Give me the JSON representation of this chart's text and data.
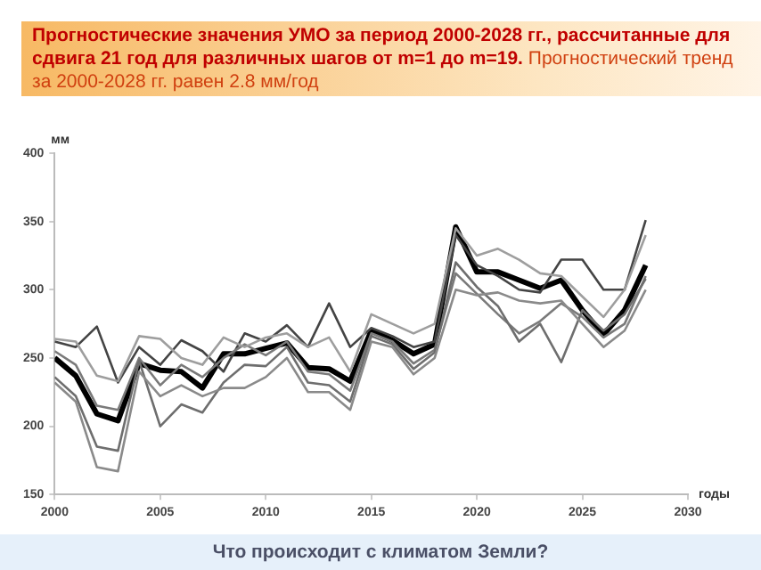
{
  "chart_data": {
    "type": "line",
    "title": "Прогностические значения УМО за период 2000-2028 гг., рассчитанные для сдвига 21 год для различных шагов от m=1 до m=19.",
    "subtitle": "Прогностический тренд за 2000-2028 гг. равен 2.8 мм/год",
    "ylabel": "мм",
    "xlabel": "годы",
    "annotations": [
      "Что происходит с климатом Земли?"
    ],
    "x": [
      2000,
      2001,
      2002,
      2003,
      2004,
      2005,
      2006,
      2007,
      2008,
      2009,
      2010,
      2011,
      2012,
      2013,
      2014,
      2015,
      2016,
      2017,
      2018,
      2019,
      2020,
      2021,
      2022,
      2023,
      2024,
      2025,
      2026,
      2027,
      2028
    ],
    "series": [
      {
        "color": "#9e9e9e",
        "values": [
          264,
          262,
          237,
          233,
          266,
          264,
          250,
          245,
          265,
          258,
          265,
          268,
          258,
          265,
          240,
          282,
          275,
          268,
          275,
          345,
          325,
          330,
          322,
          312,
          310,
          295,
          280,
          300,
          340
        ]
      },
      {
        "color": "#8a8a8a",
        "values": [
          232,
          218,
          170,
          167,
          240,
          222,
          230,
          222,
          228,
          228,
          236,
          250,
          225,
          225,
          212,
          262,
          258,
          238,
          250,
          300,
          296,
          298,
          292,
          290,
          292,
          275,
          258,
          270,
          300
        ]
      },
      {
        "color": "#6e6e6e",
        "values": [
          236,
          222,
          185,
          182,
          248,
          200,
          216,
          210,
          232,
          245,
          244,
          258,
          232,
          230,
          218,
          266,
          260,
          242,
          254,
          320,
          302,
          288,
          262,
          275,
          247,
          285,
          270,
          282,
          308
        ]
      },
      {
        "color": "#7a7a7a",
        "values": [
          255,
          245,
          215,
          212,
          250,
          230,
          245,
          236,
          250,
          260,
          252,
          262,
          240,
          238,
          226,
          268,
          262,
          246,
          256,
          312,
          297,
          282,
          268,
          277,
          290,
          280,
          265,
          275,
          310
        ]
      },
      {
        "color": "#444444",
        "values": [
          262,
          258,
          273,
          232,
          258,
          245,
          263,
          255,
          240,
          268,
          262,
          274,
          258,
          290,
          258,
          272,
          266,
          258,
          262,
          340,
          318,
          310,
          300,
          298,
          322,
          322,
          300,
          300,
          351
        ]
      },
      {
        "color": "#000000",
        "values": [
          250,
          237,
          209,
          204,
          246,
          241,
          240,
          228,
          253,
          253,
          257,
          261,
          243,
          242,
          233,
          270,
          263,
          253,
          260,
          346,
          313,
          313,
          307,
          301,
          307,
          285,
          267,
          285,
          318
        ]
      }
    ],
    "xlim": [
      2000,
      2030
    ],
    "xticks": [
      2000,
      2005,
      2010,
      2015,
      2020,
      2025,
      2030
    ],
    "ylim": [
      150,
      400
    ],
    "yticks": [
      150,
      200,
      250,
      300,
      350,
      400
    ],
    "grid": false,
    "legend": false,
    "marker": "none",
    "line_style": "solid"
  }
}
